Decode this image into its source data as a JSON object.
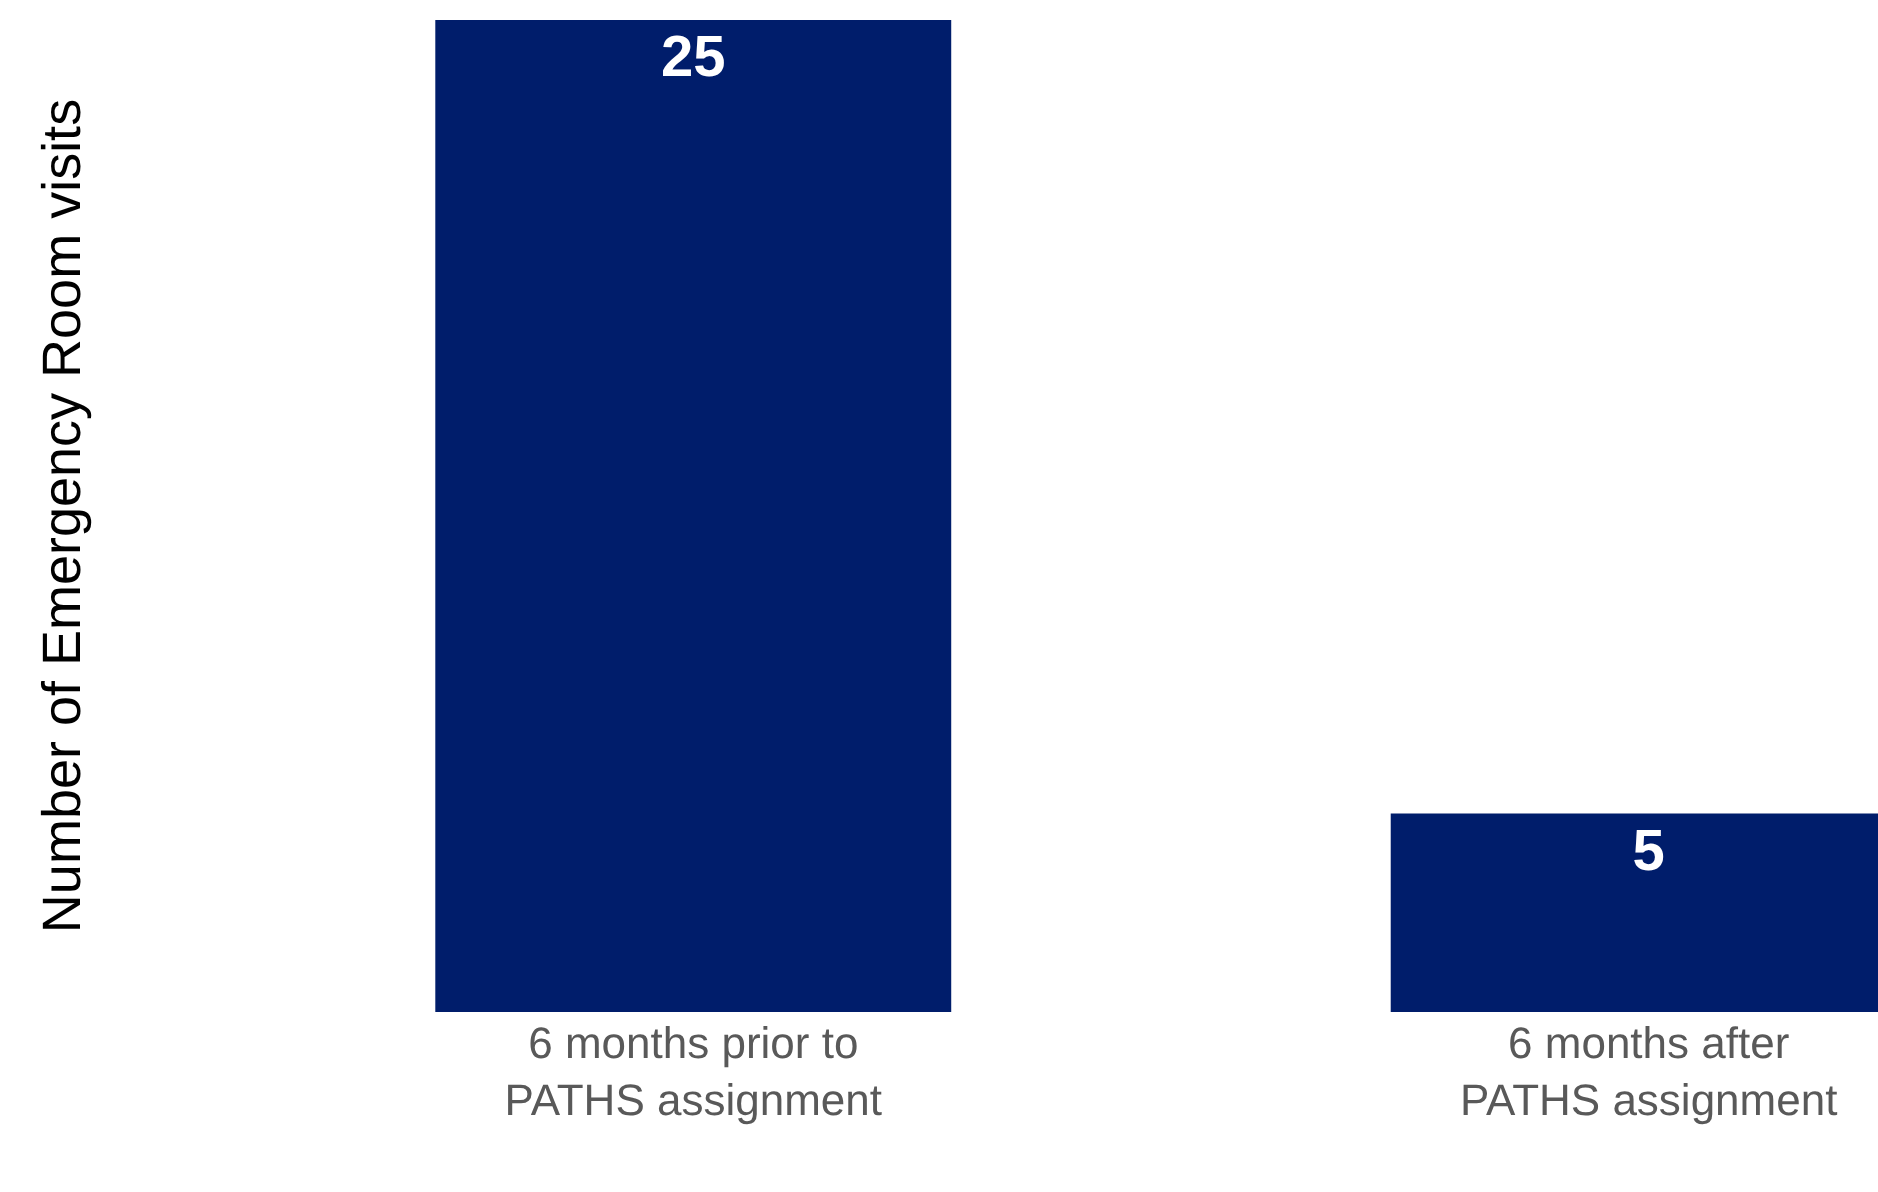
{
  "chart_data": {
    "type": "bar",
    "ylabel": "Number of Emergency Room visits",
    "categories": [
      "6 months prior to\nPATHS assignment",
      "6 months after\nPATHS assignment"
    ],
    "values": [
      25,
      5
    ],
    "color": "#001d6b",
    "ylim": [
      0,
      25
    ],
    "data_labels": true,
    "legend": false,
    "tick_labels": "x"
  }
}
